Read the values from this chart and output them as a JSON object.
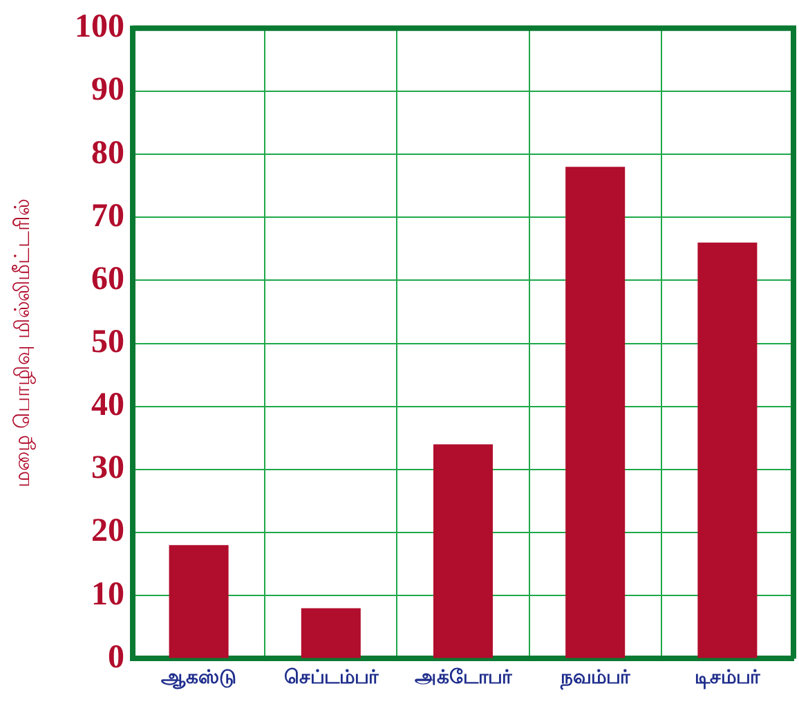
{
  "chart_data": {
    "type": "bar",
    "ylabel": "மழை பொழிவு மில்லிமீட்டரில்",
    "categories": [
      "ஆகஸ்டு",
      "செப்டம்பர்",
      "அக்டோபர்",
      "நவம்பர்",
      "டிசம்பர்"
    ],
    "values": [
      18,
      8,
      34,
      78,
      66
    ],
    "color": "#b10d2c",
    "ylim": [
      0,
      100
    ],
    "yticks": [
      0,
      10,
      20,
      30,
      40,
      50,
      60,
      70,
      80,
      90,
      100
    ],
    "grid": true
  }
}
